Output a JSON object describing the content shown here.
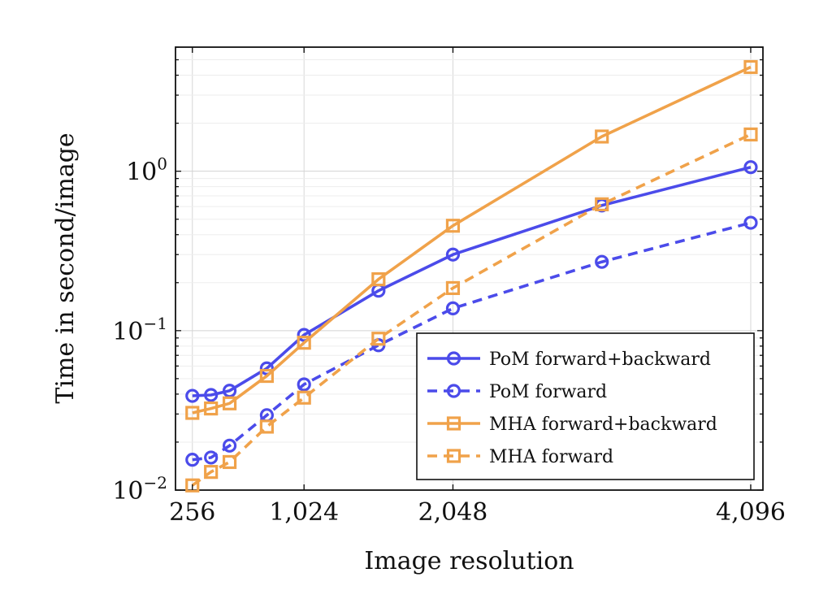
{
  "chart_data": {
    "type": "line",
    "title": "",
    "xlabel": "Image resolution",
    "ylabel": "Time in second/image",
    "x_scale": "linear",
    "y_scale": "log",
    "xlim": [
      140,
      4180
    ],
    "ylim": [
      0.01,
      6
    ],
    "x_ticks": [
      256,
      1024,
      2048,
      4096
    ],
    "x_tick_labels": [
      "256",
      "1,024",
      "2,048",
      "4,096"
    ],
    "y_ticks": [
      0.01,
      0.1,
      1
    ],
    "y_tick_labels": [
      {
        "base": "10",
        "exp": "−2"
      },
      {
        "base": "10",
        "exp": "−1"
      },
      {
        "base": "10",
        "exp": "0"
      }
    ],
    "grid": true,
    "legend_position": "bottom-right",
    "series": [
      {
        "name": "PoM forward+backward",
        "color": "#4b4bea",
        "dash": "solid",
        "marker": "circle",
        "x": [
          256,
          384,
          512,
          768,
          1024,
          1536,
          2048,
          3072,
          4096
        ],
        "values": [
          0.039,
          0.0395,
          0.042,
          0.058,
          0.094,
          0.178,
          0.3,
          0.61,
          1.06
        ]
      },
      {
        "name": "PoM forward",
        "color": "#4b4bea",
        "dash": "dashed",
        "marker": "circle",
        "x": [
          256,
          384,
          512,
          768,
          1024,
          1536,
          2048,
          3072,
          4096
        ],
        "values": [
          0.0155,
          0.016,
          0.019,
          0.0295,
          0.046,
          0.081,
          0.138,
          0.27,
          0.475
        ]
      },
      {
        "name": "MHA forward+backward",
        "color": "#f0a24a",
        "dash": "solid",
        "marker": "square",
        "x": [
          256,
          384,
          512,
          768,
          1024,
          1536,
          2048,
          3072,
          4096
        ],
        "values": [
          0.0305,
          0.0325,
          0.035,
          0.052,
          0.084,
          0.21,
          0.455,
          1.65,
          4.5
        ]
      },
      {
        "name": "MHA forward",
        "color": "#f0a24a",
        "dash": "dashed",
        "marker": "square",
        "x": [
          256,
          384,
          512,
          768,
          1024,
          1536,
          2048,
          3072,
          4096
        ],
        "values": [
          0.0107,
          0.013,
          0.015,
          0.025,
          0.038,
          0.089,
          0.185,
          0.62,
          1.7
        ]
      }
    ]
  }
}
